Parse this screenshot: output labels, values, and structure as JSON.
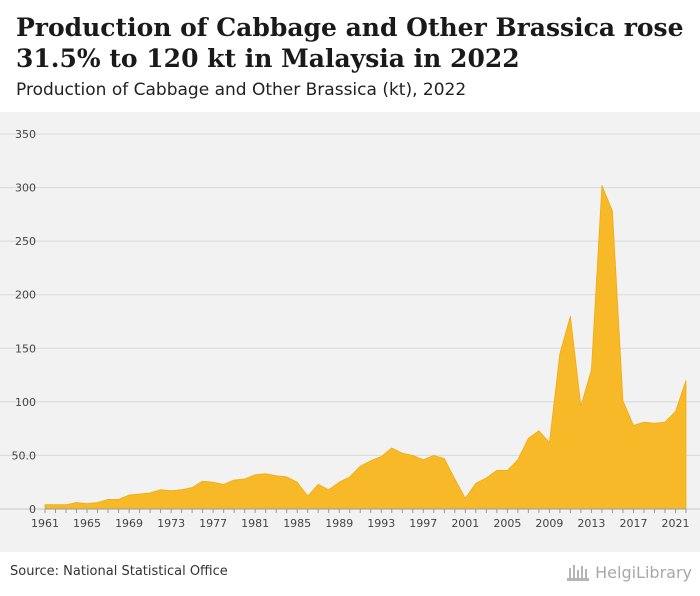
{
  "header": {
    "title": "Production of Cabbage and Other Brassica rose 31.5% to 120 kt in Malaysia in 2022",
    "subtitle": "Production of Cabbage and Other Brassica (kt), 2022"
  },
  "footer": {
    "source": "Source: National Statistical Office",
    "logo_text": "HelgiLibrary"
  },
  "colors": {
    "area": "#f7b927",
    "background": "#f2f2f2",
    "grid": "#d9d9d9"
  },
  "chart_data": {
    "type": "area",
    "title": "Production of Cabbage and Other Brassica rose 31.5% to 120 kt in Malaysia in 2022",
    "subtitle": "Production of Cabbage and Other Brassica (kt), 2022",
    "xlabel": "",
    "ylabel": "",
    "x": [
      1961,
      1962,
      1963,
      1964,
      1965,
      1966,
      1967,
      1968,
      1969,
      1970,
      1971,
      1972,
      1973,
      1974,
      1975,
      1976,
      1977,
      1978,
      1979,
      1980,
      1981,
      1982,
      1983,
      1984,
      1985,
      1986,
      1987,
      1988,
      1989,
      1990,
      1991,
      1992,
      1993,
      1994,
      1995,
      1996,
      1997,
      1998,
      1999,
      2000,
      2001,
      2002,
      2003,
      2004,
      2005,
      2006,
      2007,
      2008,
      2009,
      2010,
      2011,
      2012,
      2013,
      2014,
      2015,
      2016,
      2017,
      2018,
      2019,
      2020,
      2021,
      2022
    ],
    "series": [
      {
        "values": [
          4,
          4,
          4,
          6,
          5,
          6,
          9,
          9,
          13,
          14,
          15,
          18,
          17,
          18,
          20,
          26,
          25,
          23,
          27,
          28,
          32,
          33,
          31,
          30,
          25,
          12,
          23,
          18,
          25,
          30,
          40,
          45,
          49,
          57,
          52,
          50,
          46,
          50,
          47,
          28,
          10,
          24,
          29,
          36,
          36,
          46,
          66,
          73,
          62,
          145,
          180,
          96,
          130,
          302,
          278,
          101,
          78,
          81,
          80,
          81,
          91,
          120
        ]
      }
    ],
    "ylim": [
      0,
      350
    ],
    "yticks": [
      0,
      50,
      100,
      150,
      200,
      250,
      300,
      350
    ],
    "ytick_labels": [
      "0",
      "50.0",
      "100",
      "150",
      "200",
      "250",
      "300",
      "350"
    ],
    "xticks": [
      1961,
      1965,
      1969,
      1973,
      1977,
      1981,
      1985,
      1989,
      1993,
      1997,
      2001,
      2005,
      2009,
      2013,
      2017,
      2021
    ],
    "grid": true,
    "legend": "none"
  }
}
